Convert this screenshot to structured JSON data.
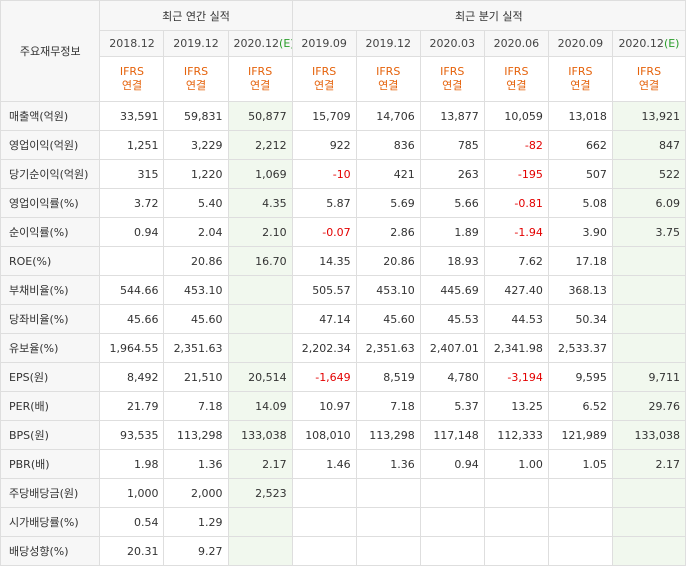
{
  "header": {
    "row_label": "주요재무정보",
    "annual_title": "최근 연간 실적",
    "quarter_title": "최근 분기 실적",
    "annual_periods": [
      {
        "label": "2018.12",
        "est": ""
      },
      {
        "label": "2019.12",
        "est": ""
      },
      {
        "label": "2020.12",
        "est": "(E)"
      }
    ],
    "quarter_periods": [
      {
        "label": "2019.09",
        "est": ""
      },
      {
        "label": "2019.12",
        "est": ""
      },
      {
        "label": "2020.03",
        "est": ""
      },
      {
        "label": "2020.06",
        "est": ""
      },
      {
        "label": "2020.09",
        "est": ""
      },
      {
        "label": "2020.12",
        "est": "(E)"
      }
    ],
    "ifrs_line1": "IFRS",
    "ifrs_line2": "연결"
  },
  "colors": {
    "ifrs": "#e5620b",
    "negative": "#e30000",
    "estimate_bg": "#f1f8ee",
    "estimate_mark": "#2a9d2a"
  },
  "rows": [
    {
      "label": "매출액(억원)",
      "cells": [
        "33,591",
        "59,831",
        "50,877",
        "15,709",
        "14,706",
        "13,877",
        "10,059",
        "13,018",
        "13,921"
      ]
    },
    {
      "label": "영업이익(억원)",
      "cells": [
        "1,251",
        "3,229",
        "2,212",
        "922",
        "836",
        "785",
        "-82",
        "662",
        "847"
      ]
    },
    {
      "label": "당기순이익(억원)",
      "cells": [
        "315",
        "1,220",
        "1,069",
        "-10",
        "421",
        "263",
        "-195",
        "507",
        "522"
      ]
    },
    {
      "label": "영업이익률(%)",
      "cells": [
        "3.72",
        "5.40",
        "4.35",
        "5.87",
        "5.69",
        "5.66",
        "-0.81",
        "5.08",
        "6.09"
      ]
    },
    {
      "label": "순이익률(%)",
      "cells": [
        "0.94",
        "2.04",
        "2.10",
        "-0.07",
        "2.86",
        "1.89",
        "-1.94",
        "3.90",
        "3.75"
      ]
    },
    {
      "label": "ROE(%)",
      "cells": [
        "",
        "20.86",
        "16.70",
        "14.35",
        "20.86",
        "18.93",
        "7.62",
        "17.18",
        ""
      ]
    },
    {
      "label": "부채비율(%)",
      "cells": [
        "544.66",
        "453.10",
        "",
        "505.57",
        "453.10",
        "445.69",
        "427.40",
        "368.13",
        ""
      ]
    },
    {
      "label": "당좌비율(%)",
      "cells": [
        "45.66",
        "45.60",
        "",
        "47.14",
        "45.60",
        "45.53",
        "44.53",
        "50.34",
        ""
      ]
    },
    {
      "label": "유보율(%)",
      "cells": [
        "1,964.55",
        "2,351.63",
        "",
        "2,202.34",
        "2,351.63",
        "2,407.01",
        "2,341.98",
        "2,533.37",
        ""
      ]
    },
    {
      "label": "EPS(원)",
      "cells": [
        "8,492",
        "21,510",
        "20,514",
        "-1,649",
        "8,519",
        "4,780",
        "-3,194",
        "9,595",
        "9,711"
      ]
    },
    {
      "label": "PER(배)",
      "cells": [
        "21.79",
        "7.18",
        "14.09",
        "10.97",
        "7.18",
        "5.37",
        "13.25",
        "6.52",
        "29.76"
      ]
    },
    {
      "label": "BPS(원)",
      "cells": [
        "93,535",
        "113,298",
        "133,038",
        "108,010",
        "113,298",
        "117,148",
        "112,333",
        "121,989",
        "133,038"
      ]
    },
    {
      "label": "PBR(배)",
      "cells": [
        "1.98",
        "1.36",
        "2.17",
        "1.46",
        "1.36",
        "0.94",
        "1.00",
        "1.05",
        "2.17"
      ]
    },
    {
      "label": "주당배당금(원)",
      "cells": [
        "1,000",
        "2,000",
        "2,523",
        "",
        "",
        "",
        "",
        "",
        ""
      ]
    },
    {
      "label": "시가배당률(%)",
      "cells": [
        "0.54",
        "1.29",
        "",
        "",
        "",
        "",
        "",
        "",
        ""
      ]
    },
    {
      "label": "배당성향(%)",
      "cells": [
        "20.31",
        "9.27",
        "",
        "",
        "",
        "",
        "",
        "",
        ""
      ]
    }
  ]
}
